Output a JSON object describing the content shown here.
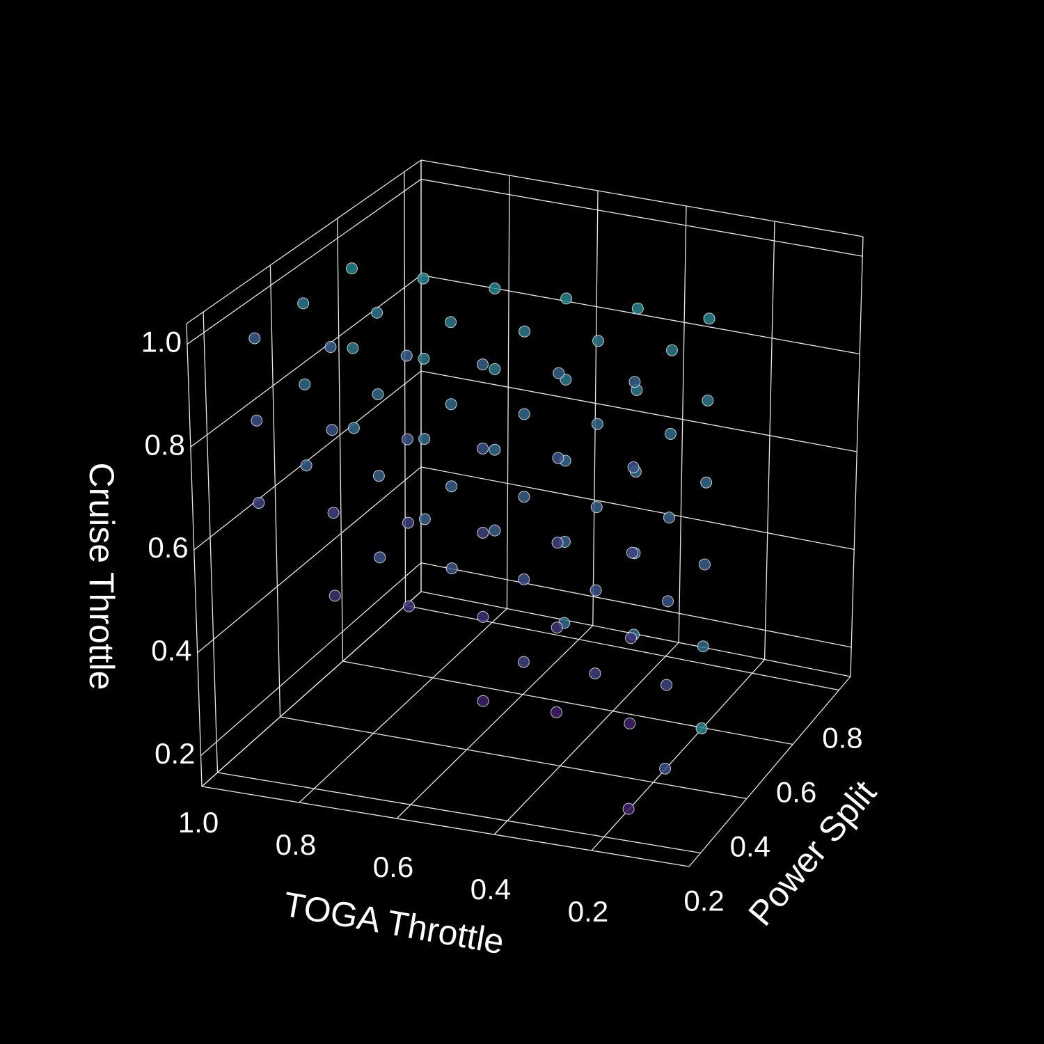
{
  "chart_data": {
    "type": "scatter3d",
    "xlabel": "TOGA Throttle",
    "ylabel": "Power Split",
    "zlabel": "Cruise Throttle",
    "x": [
      0.15,
      0.15,
      0.15,
      0.15,
      0.15,
      0.15,
      0.3,
      0.3,
      0.3,
      0.3,
      0.3,
      0.45,
      0.45,
      0.45,
      0.45,
      0.45,
      0.6,
      0.6,
      0.6,
      0.6,
      0.75,
      0.75,
      0.75,
      0.75,
      0.9,
      0.9,
      0.9,
      0.15,
      0.15,
      0.15,
      0.15,
      0.15,
      0.15,
      0.3,
      0.3,
      0.3,
      0.3,
      0.3,
      0.45,
      0.45,
      0.45,
      0.45,
      0.45,
      0.6,
      0.6,
      0.6,
      0.6,
      0.75,
      0.75,
      0.75,
      0.75,
      0.9,
      0.9,
      0.9,
      0.15,
      0.15,
      0.15,
      0.15,
      0.15,
      0.15,
      0.3,
      0.3,
      0.3,
      0.3,
      0.3,
      0.45,
      0.45,
      0.45,
      0.45,
      0.45,
      0.6,
      0.6,
      0.6,
      0.6,
      0.75,
      0.75,
      0.75,
      0.75,
      0.9,
      0.9,
      0.9
    ],
    "y": [
      0.2,
      0.2,
      0.2,
      0.2,
      0.2,
      0.2,
      0.2,
      0.2,
      0.2,
      0.2,
      0.2,
      0.2,
      0.2,
      0.2,
      0.2,
      0.2,
      0.2,
      0.2,
      0.2,
      0.2,
      0.2,
      0.2,
      0.2,
      0.2,
      0.2,
      0.2,
      0.2,
      0.35,
      0.35,
      0.35,
      0.35,
      0.35,
      0.35,
      0.35,
      0.35,
      0.35,
      0.35,
      0.35,
      0.35,
      0.35,
      0.35,
      0.35,
      0.35,
      0.35,
      0.35,
      0.35,
      0.35,
      0.35,
      0.35,
      0.35,
      0.35,
      0.35,
      0.35,
      0.35,
      0.5,
      0.5,
      0.5,
      0.5,
      0.5,
      0.5,
      0.5,
      0.5,
      0.5,
      0.5,
      0.5,
      0.5,
      0.5,
      0.5,
      0.5,
      0.5,
      0.5,
      0.5,
      0.5,
      0.5,
      0.5,
      0.5,
      0.5,
      0.5,
      0.5,
      0.5,
      0.5
    ],
    "z": [
      0.2,
      0.36,
      0.52,
      0.68,
      0.84,
      1.0,
      0.36,
      0.52,
      0.68,
      0.84,
      1.0,
      0.36,
      0.52,
      0.68,
      0.84,
      1.0,
      0.52,
      0.68,
      0.84,
      1.0,
      0.52,
      0.68,
      0.84,
      1.0,
      0.68,
      0.84,
      1.0,
      0.2,
      0.36,
      0.52,
      0.68,
      0.84,
      1.0,
      0.36,
      0.52,
      0.68,
      0.84,
      1.0,
      0.36,
      0.52,
      0.68,
      0.84,
      1.0,
      0.52,
      0.68,
      0.84,
      1.0,
      0.52,
      0.68,
      0.84,
      1.0,
      0.68,
      0.84,
      1.0,
      0.2,
      0.36,
      0.52,
      0.68,
      0.84,
      1.0,
      0.36,
      0.52,
      0.68,
      0.84,
      1.0,
      0.36,
      0.52,
      0.68,
      0.84,
      1.0,
      0.52,
      0.68,
      0.84,
      1.0,
      0.52,
      0.68,
      0.84,
      1.0,
      0.68,
      0.84,
      1.0
    ],
    "c": [
      0.2,
      0.2,
      0.3,
      0.4,
      0.5,
      0.6,
      0.2,
      0.3,
      0.4,
      0.5,
      0.6,
      0.2,
      0.3,
      0.4,
      0.5,
      0.6,
      0.3,
      0.4,
      0.5,
      0.6,
      0.3,
      0.4,
      0.5,
      0.6,
      0.4,
      0.5,
      0.6,
      0.5,
      0.4,
      0.5,
      0.6,
      0.7,
      0.8,
      0.4,
      0.5,
      0.6,
      0.7,
      0.8,
      0.4,
      0.5,
      0.6,
      0.7,
      0.8,
      0.5,
      0.6,
      0.7,
      0.8,
      0.5,
      0.6,
      0.7,
      0.8,
      0.6,
      0.7,
      0.8,
      0.9,
      0.7,
      0.6,
      0.7,
      0.8,
      0.9,
      0.7,
      0.6,
      0.7,
      0.8,
      0.9,
      0.7,
      0.6,
      0.7,
      0.8,
      0.9,
      0.6,
      0.7,
      0.8,
      0.9,
      0.6,
      0.7,
      0.8,
      0.9,
      0.7,
      0.8,
      0.9
    ],
    "colormap": [
      "#440154",
      "#3b528b",
      "#21918c"
    ],
    "clim": [
      0,
      1
    ],
    "xlim": [
      0,
      1
    ],
    "ylim": [
      0.15,
      0.85
    ],
    "zlim": [
      0.14,
      1.04
    ],
    "xticks": [
      0.2,
      0.4,
      0.6,
      0.8,
      {
        "value": 1,
        "label": "1.0"
      }
    ],
    "yticks": [
      0.2,
      0.4,
      0.6,
      0.8
    ],
    "zticks": [
      0.2,
      0.4,
      0.6,
      0.8,
      {
        "value": 1,
        "label": "1.0"
      }
    ],
    "grid": true
  }
}
